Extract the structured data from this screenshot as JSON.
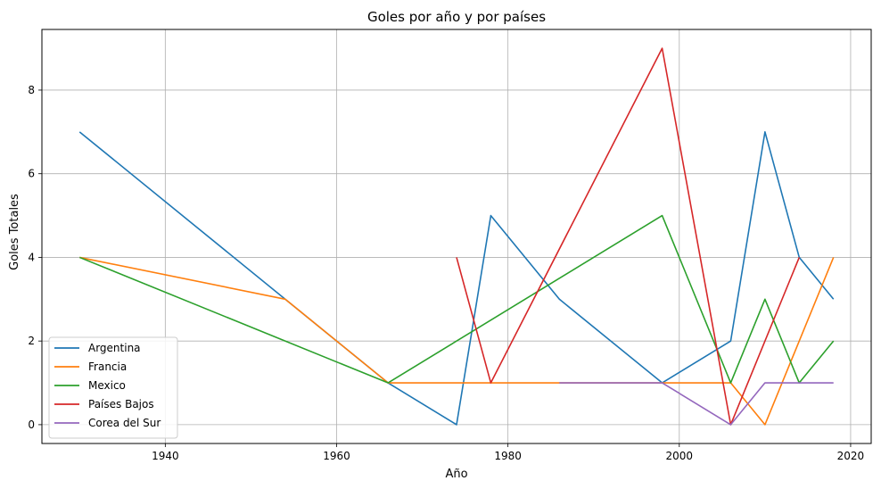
{
  "chart_data": {
    "type": "line",
    "title": "Goles por año y por países",
    "xlabel": "Año",
    "ylabel": "Goles Totales",
    "xlim": [
      1925.6,
      2022.4
    ],
    "ylim": [
      -0.45,
      9.45
    ],
    "xticks": [
      1940,
      1960,
      1980,
      2000,
      2020
    ],
    "yticks": [
      0,
      2,
      4,
      6,
      8
    ],
    "grid": true,
    "legend_position": "lower-left",
    "series": [
      {
        "name": "Argentina",
        "color": "#1f77b4",
        "x": [
          1930,
          1966,
          1974,
          1978,
          1986,
          1998,
          2006,
          2010,
          2014,
          2018
        ],
        "y": [
          7,
          1,
          0,
          5,
          3,
          1,
          2,
          7,
          4,
          3
        ]
      },
      {
        "name": "Francia",
        "color": "#ff7f0e",
        "x": [
          1930,
          1954,
          1966,
          1986,
          1998,
          2006,
          2010,
          2014,
          2018
        ],
        "y": [
          4,
          3,
          1,
          1,
          1,
          1,
          0,
          2,
          4
        ]
      },
      {
        "name": "Mexico",
        "color": "#2ca02c",
        "x": [
          1930,
          1966,
          1998,
          2006,
          2010,
          2014,
          2018
        ],
        "y": [
          4,
          1,
          5,
          1,
          3,
          1,
          2
        ]
      },
      {
        "name": "Países Bajos",
        "color": "#d62728",
        "x": [
          1974,
          1978,
          1998,
          2006,
          2010,
          2014
        ],
        "y": [
          4,
          1,
          9,
          0,
          2,
          4
        ]
      },
      {
        "name": "Corea del Sur",
        "color": "#9467bd",
        "x": [
          1986,
          1998,
          2006,
          2010,
          2014,
          2018
        ],
        "y": [
          1,
          1,
          0,
          1,
          1,
          1
        ]
      }
    ]
  }
}
